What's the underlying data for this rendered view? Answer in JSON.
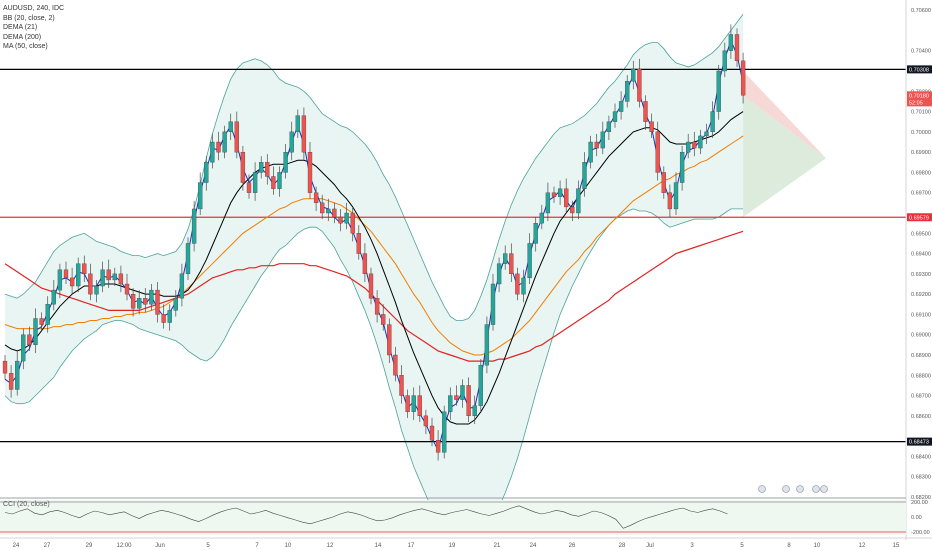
{
  "legend": {
    "symbol": "AUDUSD, 240, IDC",
    "bb": "BB (20, close, 2)",
    "dema21": "DEMA (21)",
    "dema200": "DEMA (200)",
    "ma50": "MA (50, close)"
  },
  "oscillator": {
    "label": "CCI (20, close)",
    "ticks": [
      "200.00",
      "0.00",
      "-200.00"
    ],
    "values": [
      60,
      40,
      80,
      110,
      50,
      30,
      70,
      90,
      60,
      20,
      -10,
      40,
      80,
      60,
      30,
      50,
      70,
      20,
      -20,
      30,
      60,
      90,
      70,
      40,
      10,
      -30,
      -60,
      -20,
      30,
      70,
      100,
      120,
      80,
      40,
      60,
      90,
      50,
      20,
      -10,
      -40,
      -70,
      -90,
      -60,
      -30,
      0,
      40,
      70,
      50,
      20,
      -20,
      -50,
      -40,
      -10,
      30,
      60,
      90,
      110,
      80,
      50,
      30,
      60,
      80,
      100,
      70,
      40,
      20,
      50,
      80,
      120,
      150,
      110,
      70,
      40,
      60,
      90,
      70,
      30,
      10,
      40,
      80,
      60,
      20,
      -30,
      -150,
      -110,
      -60,
      -20,
      10,
      40,
      70,
      100,
      120,
      80,
      60,
      90,
      110,
      80,
      40
    ]
  },
  "colors": {
    "up": "#26a69a",
    "down": "#ef5350",
    "bb_band": "#4aa39a",
    "bb_fill": "#e8f5f3",
    "dema21": "#1f2bb8",
    "dema200": "#e02424",
    "ma50": "#f57c00",
    "basis": "#000000",
    "support": "#e8313a",
    "resistance": "#000000"
  },
  "chart_data": {
    "type": "candlestick",
    "symbol": "AUDUSD",
    "interval": "240",
    "y_axis": {
      "ticks": [
        "0.70600",
        "0.70400",
        "0.70200",
        "0.70100",
        "0.70000",
        "0.69900",
        "0.69800",
        "0.69700",
        "0.69500",
        "0.69400",
        "0.69300",
        "0.69200",
        "0.69100",
        "0.69000",
        "0.68900",
        "0.68800",
        "0.68700",
        "0.68600",
        "0.68400",
        "0.68300",
        "0.68200"
      ],
      "ylim": [
        0.682,
        0.7065
      ]
    },
    "x_axis": {
      "ticks": [
        "24",
        "27",
        "29",
        "12:00",
        "Jun",
        "5",
        "7",
        "10",
        "12",
        "14",
        "17",
        "19",
        "21",
        "24",
        "26",
        "28",
        "Jul",
        "3",
        "5",
        "8",
        "10",
        "12",
        "15"
      ]
    },
    "levels": [
      {
        "label": "0.70308",
        "value": 0.70308,
        "kind": "resistance"
      },
      {
        "label": "0.70180",
        "value": 0.7018,
        "kind": "current"
      },
      {
        "label": "52:05",
        "kind": "countdown"
      },
      {
        "label": "0.69579",
        "value": 0.69579,
        "kind": "support"
      },
      {
        "label": "0.68473",
        "value": 0.68473,
        "kind": "support"
      }
    ],
    "close": [
      0.6881,
      0.6873,
      0.6887,
      0.69,
      0.6895,
      0.6908,
      0.6905,
      0.6915,
      0.6922,
      0.6932,
      0.6928,
      0.6924,
      0.6935,
      0.693,
      0.692,
      0.6924,
      0.6932,
      0.6927,
      0.693,
      0.6925,
      0.692,
      0.6913,
      0.6918,
      0.6915,
      0.6922,
      0.691,
      0.6906,
      0.6912,
      0.6918,
      0.693,
      0.6945,
      0.6962,
      0.6975,
      0.6985,
      0.6995,
      0.699,
      0.7,
      0.7005,
      0.699,
      0.6975,
      0.697,
      0.698,
      0.6985,
      0.6978,
      0.6972,
      0.698,
      0.699,
      0.7,
      0.7008,
      0.699,
      0.697,
      0.6965,
      0.696,
      0.6962,
      0.6958,
      0.6955,
      0.696,
      0.695,
      0.694,
      0.693,
      0.6918,
      0.691,
      0.6905,
      0.689,
      0.688,
      0.687,
      0.6862,
      0.687,
      0.686,
      0.6855,
      0.6848,
      0.6842,
      0.6862,
      0.687,
      0.6868,
      0.6875,
      0.686,
      0.6865,
      0.6885,
      0.6905,
      0.6925,
      0.6935,
      0.694,
      0.693,
      0.692,
      0.6928,
      0.6945,
      0.6955,
      0.696,
      0.697,
      0.6968,
      0.6972,
      0.6963,
      0.696,
      0.6972,
      0.6985,
      0.6995,
      0.6992,
      0.7,
      0.7005,
      0.701,
      0.7015,
      0.7025,
      0.7031,
      0.7015,
      0.7005,
      0.7,
      0.698,
      0.697,
      0.6962,
      0.6975,
      0.699,
      0.6995,
      0.6992,
      0.6998,
      0.7,
      0.701,
      0.703,
      0.704,
      0.7048,
      0.7035,
      0.7018
    ],
    "bb_basis": [
      0.6895,
      0.6893,
      0.6892,
      0.6893,
      0.6895,
      0.6898,
      0.6902,
      0.6906,
      0.691,
      0.6914,
      0.6917,
      0.692,
      0.6922,
      0.6924,
      0.6924,
      0.6924,
      0.6925,
      0.6925,
      0.6925,
      0.6924,
      0.6923,
      0.6922,
      0.6921,
      0.692,
      0.692,
      0.692,
      0.6919,
      0.6919,
      0.6919,
      0.692,
      0.6922,
      0.6926,
      0.6931,
      0.6937,
      0.6944,
      0.6951,
      0.6958,
      0.6965,
      0.697,
      0.6974,
      0.6977,
      0.698,
      0.6982,
      0.6983,
      0.6984,
      0.6984,
      0.6984,
      0.6985,
      0.6986,
      0.6986,
      0.6985,
      0.6983,
      0.698,
      0.6977,
      0.6974,
      0.697,
      0.6967,
      0.6963,
      0.6958,
      0.6953,
      0.6947,
      0.694,
      0.6932,
      0.6924,
      0.6916,
      0.6907,
      0.6899,
      0.6891,
      0.6884,
      0.6877,
      0.687,
      0.6864,
      0.686,
      0.6857,
      0.6856,
      0.6856,
      0.6856,
      0.6858,
      0.6862,
      0.6867,
      0.6874,
      0.6881,
      0.6889,
      0.6897,
      0.6905,
      0.6913,
      0.6921,
      0.6929,
      0.6936,
      0.6943,
      0.695,
      0.6956,
      0.696,
      0.6964,
      0.6968,
      0.6972,
      0.6976,
      0.698,
      0.6984,
      0.6988,
      0.6991,
      0.6994,
      0.6997,
      0.7,
      0.7001,
      0.7002,
      0.7002,
      0.7001,
      0.6998,
      0.6995,
      0.6994,
      0.6994,
      0.6994,
      0.6995,
      0.6996,
      0.6997,
      0.6998,
      0.7,
      0.7003,
      0.7006,
      0.7008,
      0.701
    ],
    "bb_width": [
      0.0025,
      0.0026,
      0.0026,
      0.0027,
      0.0028,
      0.0028,
      0.0029,
      0.003,
      0.0031,
      0.003,
      0.0029,
      0.0028,
      0.0027,
      0.0026,
      0.0024,
      0.0022,
      0.002,
      0.0019,
      0.0018,
      0.0017,
      0.0017,
      0.0017,
      0.0018,
      0.0018,
      0.0019,
      0.002,
      0.002,
      0.0021,
      0.0022,
      0.0025,
      0.003,
      0.0036,
      0.0043,
      0.005,
      0.0055,
      0.0058,
      0.006,
      0.0061,
      0.0061,
      0.006,
      0.0058,
      0.0056,
      0.0053,
      0.005,
      0.0046,
      0.0042,
      0.004,
      0.0038,
      0.0036,
      0.0034,
      0.0032,
      0.003,
      0.0029,
      0.003,
      0.0031,
      0.0033,
      0.0035,
      0.0037,
      0.0039,
      0.0041,
      0.0043,
      0.0045,
      0.0047,
      0.005,
      0.0052,
      0.0054,
      0.0055,
      0.0056,
      0.0056,
      0.0056,
      0.0056,
      0.0056,
      0.0054,
      0.0052,
      0.0051,
      0.0051,
      0.0052,
      0.0054,
      0.0057,
      0.006,
      0.0063,
      0.0066,
      0.0067,
      0.0067,
      0.0066,
      0.0064,
      0.0061,
      0.0058,
      0.0055,
      0.0052,
      0.0049,
      0.0046,
      0.0043,
      0.004,
      0.0038,
      0.0036,
      0.0035,
      0.0034,
      0.0034,
      0.0034,
      0.0034,
      0.0035,
      0.0036,
      0.0038,
      0.004,
      0.0041,
      0.0042,
      0.0043,
      0.0043,
      0.0042,
      0.004,
      0.0039,
      0.0038,
      0.0038,
      0.0039,
      0.004,
      0.0041,
      0.0042,
      0.0043,
      0.0044,
      0.0046,
      0.0048
    ],
    "dema21": [
      0.6878,
      0.6876,
      0.688,
      0.689,
      0.6893,
      0.6902,
      0.6904,
      0.6911,
      0.6918,
      0.6927,
      0.6928,
      0.6926,
      0.6931,
      0.693,
      0.6924,
      0.6924,
      0.6929,
      0.6928,
      0.6929,
      0.6926,
      0.6922,
      0.6916,
      0.6917,
      0.6915,
      0.6919,
      0.6913,
      0.6909,
      0.6911,
      0.6916,
      0.6926,
      0.694,
      0.6956,
      0.697,
      0.6981,
      0.6992,
      0.6991,
      0.6998,
      0.7003,
      0.6994,
      0.6982,
      0.6975,
      0.6978,
      0.6982,
      0.6979,
      0.6974,
      0.6977,
      0.6985,
      0.6995,
      0.7003,
      0.6994,
      0.6978,
      0.697,
      0.6963,
      0.6962,
      0.6958,
      0.6955,
      0.6957,
      0.6951,
      0.6943,
      0.6934,
      0.6922,
      0.6913,
      0.6906,
      0.6894,
      0.6883,
      0.6873,
      0.6864,
      0.6867,
      0.6861,
      0.6856,
      0.6849,
      0.6843,
      0.6855,
      0.6864,
      0.6866,
      0.6872,
      0.6864,
      0.6864,
      0.6878,
      0.6897,
      0.6917,
      0.693,
      0.6938,
      0.6933,
      0.6924,
      0.6926,
      0.6939,
      0.695,
      0.6957,
      0.6966,
      0.6968,
      0.6971,
      0.6966,
      0.6962,
      0.6969,
      0.698,
      0.6991,
      0.6992,
      0.6998,
      0.7003,
      0.7008,
      0.7013,
      0.7021,
      0.7028,
      0.7019,
      0.7009,
      0.7002,
      0.6987,
      0.6975,
      0.6966,
      0.6971,
      0.6984,
      0.6991,
      0.6992,
      0.6996,
      0.6999,
      0.7007,
      0.7024,
      0.7036,
      0.7045,
      0.7038,
      0.7024
    ],
    "dema200": [
      0.6935,
      0.6933,
      0.6931,
      0.6929,
      0.6927,
      0.6925,
      0.6923,
      0.6922,
      0.6921,
      0.692,
      0.6919,
      0.6918,
      0.6917,
      0.6916,
      0.6915,
      0.6914,
      0.6913,
      0.6912,
      0.6912,
      0.6912,
      0.6912,
      0.6912,
      0.6912,
      0.6913,
      0.6914,
      0.6915,
      0.6916,
      0.6917,
      0.6918,
      0.6919,
      0.692,
      0.6922,
      0.6924,
      0.6926,
      0.6928,
      0.6929,
      0.693,
      0.6931,
      0.6932,
      0.6932,
      0.6933,
      0.6933,
      0.6934,
      0.6934,
      0.6934,
      0.6935,
      0.6935,
      0.6935,
      0.6935,
      0.6935,
      0.6934,
      0.6934,
      0.6933,
      0.6932,
      0.6931,
      0.693,
      0.6929,
      0.6927,
      0.6925,
      0.6923,
      0.692,
      0.6917,
      0.6914,
      0.6911,
      0.6908,
      0.6905,
      0.6902,
      0.69,
      0.6898,
      0.6896,
      0.6894,
      0.6892,
      0.6891,
      0.689,
      0.6889,
      0.6888,
      0.6887,
      0.6887,
      0.6887,
      0.6887,
      0.6887,
      0.6888,
      0.6888,
      0.6889,
      0.689,
      0.6891,
      0.6892,
      0.6894,
      0.6895,
      0.6897,
      0.6899,
      0.6901,
      0.6903,
      0.6905,
      0.6907,
      0.6909,
      0.6911,
      0.6913,
      0.6915,
      0.6917,
      0.692,
      0.6922,
      0.6924,
      0.6926,
      0.6928,
      0.693,
      0.6932,
      0.6934,
      0.6936,
      0.6938,
      0.694,
      0.6941,
      0.6942,
      0.6943,
      0.6944,
      0.6945,
      0.6946,
      0.6947,
      0.6948,
      0.6949,
      0.695,
      0.6951
    ],
    "ma50": [
      0.6905,
      0.6904,
      0.6903,
      0.6903,
      0.6903,
      0.6903,
      0.6903,
      0.6903,
      0.6904,
      0.6904,
      0.6905,
      0.6905,
      0.6906,
      0.6906,
      0.6907,
      0.6907,
      0.6908,
      0.6908,
      0.6909,
      0.6909,
      0.691,
      0.691,
      0.6911,
      0.6911,
      0.6912,
      0.6913,
      0.6914,
      0.6916,
      0.6918,
      0.692,
      0.6923,
      0.6926,
      0.6929,
      0.6932,
      0.6935,
      0.6938,
      0.6941,
      0.6944,
      0.6947,
      0.695,
      0.6952,
      0.6954,
      0.6956,
      0.6958,
      0.696,
      0.6962,
      0.6963,
      0.6965,
      0.6966,
      0.6967,
      0.6967,
      0.6967,
      0.6967,
      0.6966,
      0.6965,
      0.6964,
      0.6962,
      0.696,
      0.6957,
      0.6954,
      0.6951,
      0.6947,
      0.6943,
      0.6939,
      0.6935,
      0.693,
      0.6925,
      0.692,
      0.6916,
      0.6911,
      0.6906,
      0.6902,
      0.6899,
      0.6896,
      0.6894,
      0.6892,
      0.6891,
      0.689,
      0.689,
      0.6891,
      0.6892,
      0.6894,
      0.6896,
      0.6898,
      0.6901,
      0.6904,
      0.6907,
      0.6911,
      0.6915,
      0.6919,
      0.6923,
      0.6927,
      0.6931,
      0.6934,
      0.6937,
      0.6941,
      0.6944,
      0.6948,
      0.6951,
      0.6954,
      0.6957,
      0.696,
      0.6963,
      0.6966,
      0.6968,
      0.697,
      0.6972,
      0.6974,
      0.6976,
      0.6977,
      0.6979,
      0.698,
      0.6982,
      0.6983,
      0.6985,
      0.6986,
      0.6988,
      0.699,
      0.6992,
      0.6994,
      0.6996,
      0.6998
    ],
    "indicators": [
      "BB (20, close, 2)",
      "DEMA (21)",
      "DEMA (200)",
      "MA (50, close)"
    ]
  }
}
